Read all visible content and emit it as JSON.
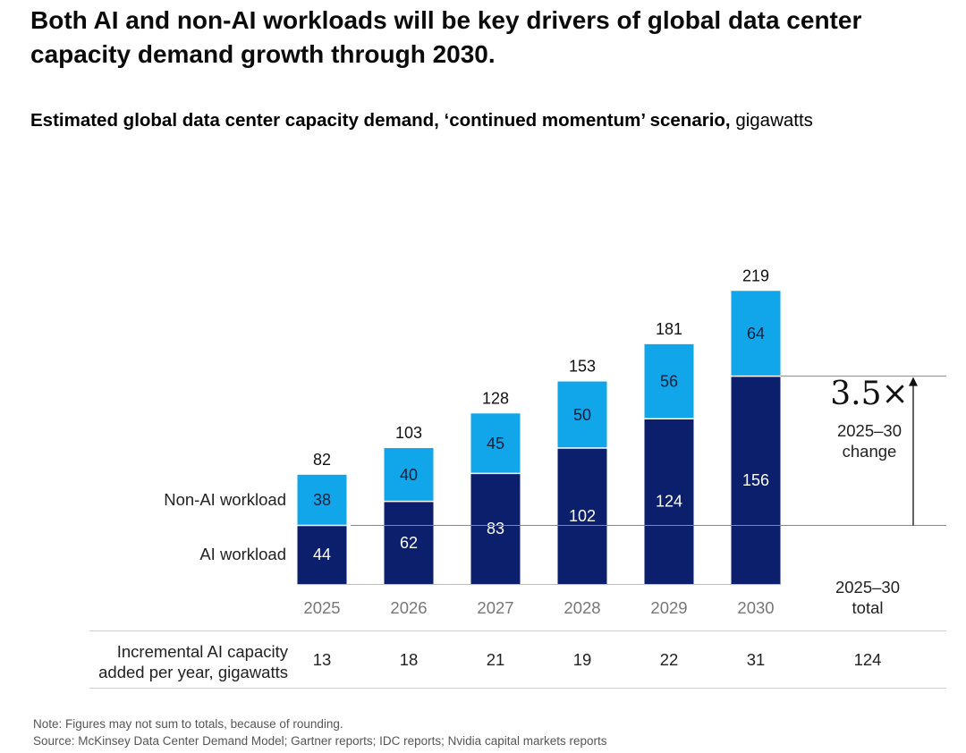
{
  "headline": "Both AI and non-AI workloads will be key drivers of global data center capacity demand growth through 2030.",
  "subtitle": {
    "bold": "Estimated global data center capacity demand, ‘continued momentum’ scenario,",
    "unit": "gigawatts"
  },
  "chart_data": {
    "type": "bar",
    "stacked": true,
    "categories": [
      "2025",
      "2026",
      "2027",
      "2028",
      "2029",
      "2030"
    ],
    "series": [
      {
        "name": "AI workload",
        "values": [
          44,
          62,
          83,
          102,
          124,
          156
        ],
        "color": "#0b1f6d"
      },
      {
        "name": "Non-AI workload",
        "values": [
          38,
          40,
          45,
          50,
          56,
          64
        ],
        "color": "#11a5ea"
      }
    ],
    "totals": [
      82,
      103,
      128,
      153,
      181,
      219
    ],
    "ylim": [
      0,
      219
    ],
    "grid": false,
    "legend": "left, labels beside first bar",
    "annotation": {
      "multiplier": "3.5×",
      "label_line1": "2025–30",
      "label_line2": "change"
    },
    "summary_header": [
      "2025–30",
      "total"
    ]
  },
  "table": {
    "row_label": [
      "Incremental AI capacity",
      "added per year, gigawatts"
    ],
    "values": [
      "13",
      "18",
      "21",
      "19",
      "22",
      "31"
    ],
    "total": "124"
  },
  "notes": {
    "note": "Note: Figures may not sum to totals, because of rounding.",
    "source": "Source: McKinsey Data Center Demand Model; Gartner reports; IDC reports; Nvidia capital markets reports"
  }
}
